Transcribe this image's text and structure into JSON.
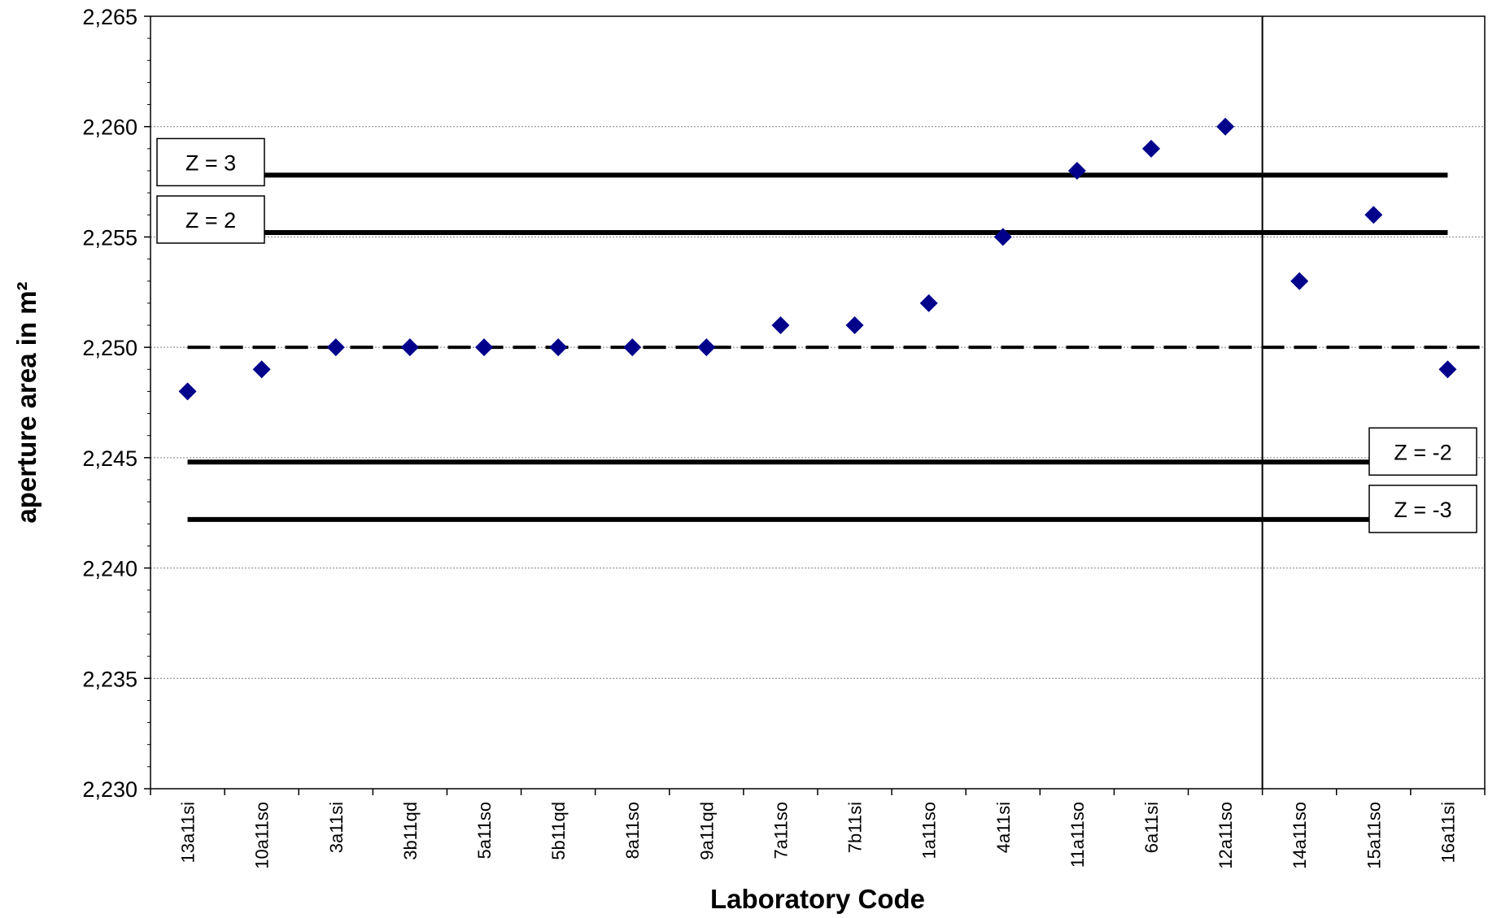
{
  "chart_data": {
    "type": "scatter",
    "xlabel": "Laboratory Code",
    "ylabel": "aperture area in m²",
    "ylim": [
      2.23,
      2.265
    ],
    "y_ticks": [
      2.23,
      2.235,
      2.24,
      2.245,
      2.25,
      2.255,
      2.26,
      2.265
    ],
    "y_tick_labels": [
      "2,230",
      "2,235",
      "2,240",
      "2,245",
      "2,250",
      "2,255",
      "2,260",
      "2,265"
    ],
    "categories": [
      "13a11si",
      "10a11so",
      "3a11si",
      "3b11qd",
      "5a11so",
      "5b11qd",
      "8a11so",
      "9a11qd",
      "7a11so",
      "7b11si",
      "1a11so",
      "4a11si",
      "11a11so",
      "6a11si",
      "12a11so",
      "14a11so",
      "15a11so",
      "16a11si"
    ],
    "values": [
      2.248,
      2.249,
      2.25,
      2.25,
      2.25,
      2.25,
      2.25,
      2.25,
      2.251,
      2.251,
      2.252,
      2.255,
      2.258,
      2.259,
      2.26,
      2.253,
      2.256,
      2.249
    ],
    "mean_line": 2.25,
    "z_lines": [
      {
        "label": "Z = 3",
        "value": 2.2578,
        "label_side": "left"
      },
      {
        "label": "Z = 2",
        "value": 2.2552,
        "label_side": "left"
      },
      {
        "label": "Z = -2",
        "value": 2.2448,
        "label_side": "right"
      },
      {
        "label": "Z = -3",
        "value": 2.2422,
        "label_side": "right"
      }
    ],
    "separator_after_category": "12a11so",
    "grid": true,
    "colors": {
      "marker": "#00008B",
      "lines": "#000000",
      "grid": "#808080"
    }
  }
}
